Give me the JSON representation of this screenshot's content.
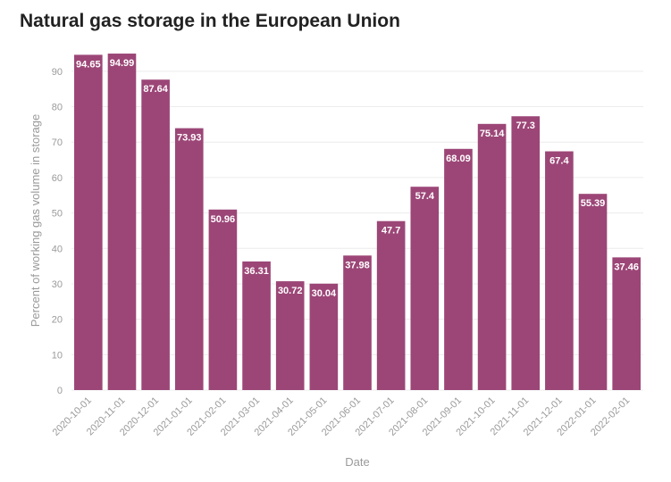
{
  "chart_data": {
    "type": "bar",
    "title": "Natural gas storage in the European Union",
    "xlabel": "Date",
    "ylabel": "Percent of working gas volume in storage",
    "categories": [
      "2020-10-01",
      "2020-11-01",
      "2020-12-01",
      "2021-01-01",
      "2021-02-01",
      "2021-03-01",
      "2021-04-01",
      "2021-05-01",
      "2021-06-01",
      "2021-07-01",
      "2021-08-01",
      "2021-09-01",
      "2021-10-01",
      "2021-11-01",
      "2021-12-01",
      "2022-01-01",
      "2022-02-01"
    ],
    "values": [
      94.65,
      94.99,
      87.64,
      73.93,
      50.96,
      36.31,
      30.72,
      30.04,
      37.98,
      47.7,
      57.4,
      68.09,
      75.14,
      77.3,
      67.4,
      55.39,
      37.46
    ],
    "ylim": [
      0,
      95
    ],
    "yticks": [
      0,
      10,
      20,
      30,
      40,
      50,
      60,
      70,
      80,
      90
    ],
    "grid": true,
    "bar_color": "#9c4677",
    "data_labels": true
  }
}
